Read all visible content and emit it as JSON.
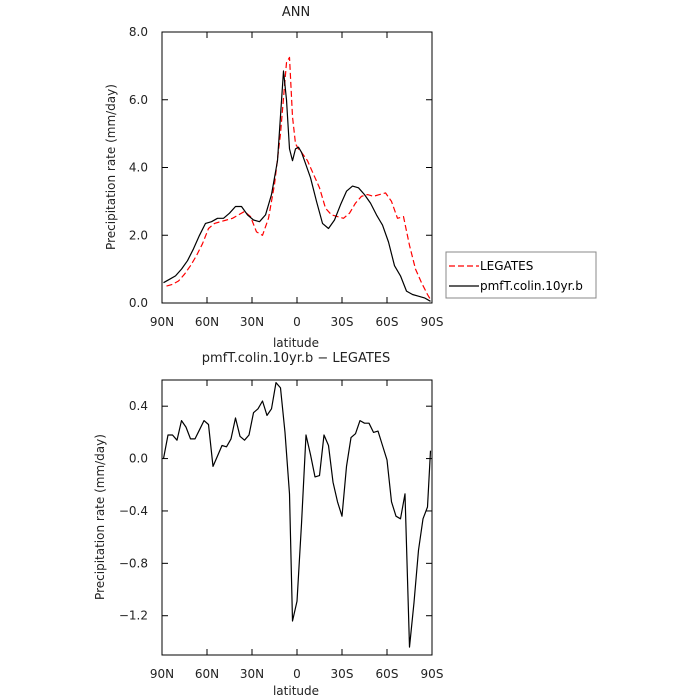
{
  "chart_data": [
    {
      "type": "line",
      "title": "ANN",
      "xlabel": "latitude",
      "ylabel": "Precipitation rate (mm/day)",
      "xlim": [
        90,
        -90
      ],
      "ylim": [
        0,
        8
      ],
      "xticks": [
        90,
        60,
        30,
        0,
        -30,
        -60,
        -90
      ],
      "xtick_labels": [
        "90N",
        "60N",
        "30N",
        "0",
        "30S",
        "60S",
        "90S"
      ],
      "yticks": [
        0,
        2,
        4,
        6,
        8
      ],
      "ytick_labels": [
        "0.0",
        "2.0",
        "4.0",
        "6.0",
        "8.0"
      ],
      "legend_position": "right",
      "series": [
        {
          "name": "LEGATES",
          "color": "#ff0000",
          "style": "dashed",
          "x": [
            87,
            83,
            79,
            75,
            71,
            67,
            63,
            59,
            55,
            51,
            47,
            43,
            39,
            35,
            31,
            27,
            23,
            19,
            15,
            11,
            7,
            5,
            3,
            1,
            -1,
            -3,
            -7,
            -11,
            -15,
            -19,
            -23,
            -27,
            -31,
            -35,
            -39,
            -43,
            -47,
            -51,
            -55,
            -59,
            -63,
            -67,
            -71,
            -75,
            -79,
            -83,
            -87,
            -89
          ],
          "values": [
            0.5,
            0.55,
            0.65,
            0.85,
            1.1,
            1.4,
            1.75,
            2.2,
            2.35,
            2.4,
            2.45,
            2.5,
            2.6,
            2.7,
            2.55,
            2.1,
            2.0,
            2.5,
            3.5,
            5.0,
            7.1,
            7.25,
            5.5,
            4.7,
            4.55,
            4.45,
            4.2,
            3.8,
            3.4,
            2.8,
            2.6,
            2.55,
            2.5,
            2.65,
            2.95,
            3.15,
            3.2,
            3.15,
            3.2,
            3.25,
            3.0,
            2.5,
            2.55,
            1.7,
            1.0,
            0.6,
            0.25,
            0.1
          ]
        },
        {
          "name": "pmfT.colin.10yr.b",
          "color": "#000000",
          "style": "solid",
          "x": [
            89,
            85,
            81,
            77,
            73,
            69,
            65,
            61,
            57,
            53,
            49,
            45,
            41,
            37,
            33,
            29,
            25,
            21,
            17,
            13,
            9,
            7,
            5,
            3,
            1,
            -1,
            -3,
            -5,
            -9,
            -13,
            -17,
            -21,
            -25,
            -29,
            -33,
            -37,
            -41,
            -45,
            -49,
            -53,
            -57,
            -61,
            -65,
            -69,
            -73,
            -77,
            -81,
            -85,
            -89
          ],
          "values": [
            0.6,
            0.7,
            0.8,
            1.0,
            1.25,
            1.6,
            2.0,
            2.35,
            2.4,
            2.5,
            2.5,
            2.65,
            2.85,
            2.85,
            2.6,
            2.45,
            2.4,
            2.6,
            3.2,
            4.2,
            6.85,
            6.0,
            4.55,
            4.2,
            4.55,
            4.6,
            4.45,
            4.2,
            3.7,
            3.0,
            2.35,
            2.2,
            2.45,
            2.9,
            3.3,
            3.45,
            3.4,
            3.2,
            2.95,
            2.6,
            2.3,
            1.8,
            1.1,
            0.8,
            0.35,
            0.25,
            0.2,
            0.15,
            0.05
          ]
        }
      ]
    },
    {
      "type": "line",
      "title": "pmfT.colin.10yr.b − LEGATES",
      "xlabel": "latitude",
      "ylabel": "Precipitation rate (mm/day)",
      "xlim": [
        90,
        -90
      ],
      "ylim": [
        -1.5,
        0.6
      ],
      "xticks": [
        90,
        60,
        30,
        0,
        -30,
        -60,
        -90
      ],
      "xtick_labels": [
        "90N",
        "60N",
        "30N",
        "0",
        "30S",
        "60S",
        "90S"
      ],
      "yticks": [
        0.4,
        0.0,
        -0.4,
        -0.8,
        -1.2
      ],
      "ytick_labels": [
        "0.4",
        "0.0",
        "−0.4",
        "−0.8",
        "−1.2"
      ],
      "series": [
        {
          "color": "#000000",
          "style": "solid",
          "x": [
            89,
            86,
            83,
            80,
            77,
            74,
            71,
            68,
            65,
            62,
            59,
            56,
            53,
            50,
            47,
            44,
            41,
            38,
            35,
            32,
            29,
            26,
            23,
            20,
            17,
            14,
            11,
            8,
            5,
            3,
            0,
            -3,
            -6,
            -9,
            -12,
            -15,
            -18,
            -21,
            -24,
            -27,
            -30,
            -33,
            -36,
            -39,
            -42,
            -45,
            -48,
            -51,
            -54,
            -57,
            -60,
            -63,
            -66,
            -69,
            -72,
            -75,
            -78,
            -81,
            -84,
            -87,
            -89
          ],
          "values": [
            0.0,
            0.18,
            0.18,
            0.14,
            0.29,
            0.24,
            0.15,
            0.15,
            0.22,
            0.29,
            0.26,
            -0.06,
            0.02,
            0.1,
            0.09,
            0.15,
            0.31,
            0.17,
            0.14,
            0.18,
            0.35,
            0.38,
            0.44,
            0.33,
            0.38,
            0.58,
            0.54,
            0.2,
            -0.27,
            -1.24,
            -1.09,
            -0.5,
            0.18,
            0.03,
            -0.14,
            -0.13,
            0.18,
            0.1,
            -0.18,
            -0.33,
            -0.44,
            -0.06,
            0.16,
            0.19,
            0.29,
            0.27,
            0.27,
            0.2,
            0.21,
            0.1,
            -0.01,
            -0.33,
            -0.44,
            -0.46,
            -0.27,
            -1.44,
            -1.1,
            -0.7,
            -0.46,
            -0.37,
            0.06
          ]
        }
      ]
    }
  ]
}
